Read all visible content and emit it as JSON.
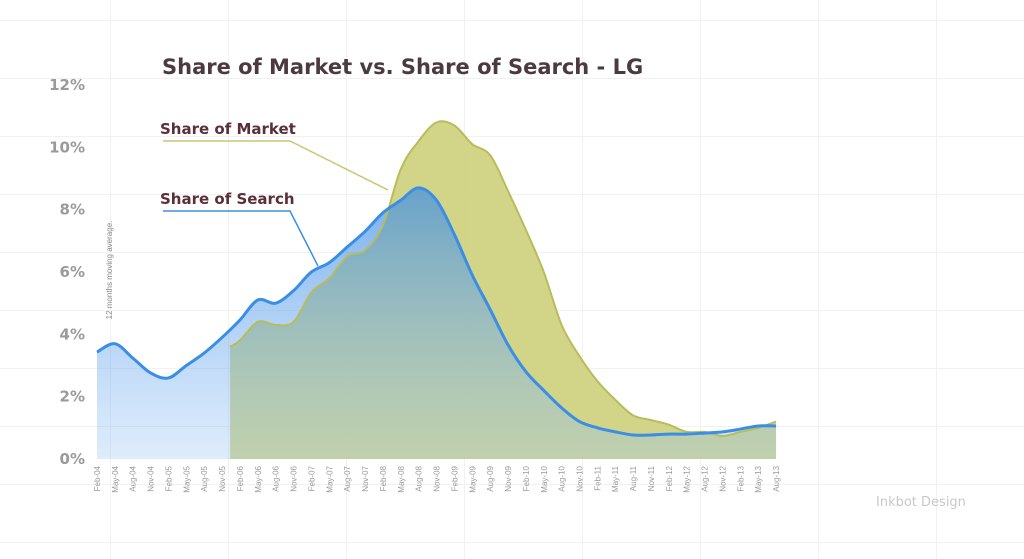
{
  "chart_data": {
    "type": "area",
    "title": "Share of Market vs. Share of Search - LG",
    "ylabel": "12 months moving average.",
    "ylim": [
      0,
      12
    ],
    "yticks": [
      "0%",
      "2%",
      "4%",
      "6%",
      "8%",
      "10%",
      "12%"
    ],
    "grid": true,
    "categories": [
      "Feb-04",
      "May-04",
      "Aug-04",
      "Nov-04",
      "Feb-05",
      "May-05",
      "Aug-05",
      "Nov-05",
      "Feb-06",
      "May-06",
      "Aug-06",
      "Nov-06",
      "Feb-07",
      "May-07",
      "Aug-07",
      "Nov-07",
      "Feb-08",
      "May-08",
      "Aug-08",
      "Nov-08",
      "Feb-09",
      "May-09",
      "Aug-09",
      "Nov-09",
      "Feb-10",
      "May-10",
      "Aug-10",
      "Nov-10",
      "Feb-11",
      "May-11",
      "Aug-11",
      "Nov-11",
      "Feb-12",
      "May-12",
      "Aug-12",
      "Nov-12",
      "Feb-13",
      "May-13",
      "Aug-13"
    ],
    "series": [
      {
        "name": "Share of Market",
        "color": "#c5c96e",
        "values": [
          null,
          null,
          null,
          null,
          null,
          null,
          null,
          3.6,
          3.8,
          4.4,
          4.3,
          4.4,
          5.35,
          5.8,
          6.5,
          6.7,
          7.5,
          9.3,
          10.2,
          10.8,
          10.7,
          10.1,
          9.75,
          8.6,
          7.35,
          6.0,
          4.3,
          3.3,
          2.5,
          1.9,
          1.4,
          1.25,
          1.1,
          0.87,
          0.87,
          0.74,
          0.87,
          1.0,
          1.2
        ]
      },
      {
        "name": "Share of Search",
        "color": "#3a8ee6",
        "values": [
          3.43,
          3.7,
          3.24,
          2.76,
          2.6,
          3.0,
          3.4,
          3.9,
          4.46,
          5.1,
          5.0,
          5.4,
          6.0,
          6.3,
          6.8,
          7.3,
          7.9,
          8.3,
          8.7,
          8.3,
          7.2,
          5.9,
          4.8,
          3.66,
          2.8,
          2.2,
          1.64,
          1.2,
          1.0,
          0.87,
          0.77,
          0.77,
          0.8,
          0.8,
          0.83,
          0.87,
          0.96,
          1.06,
          1.06
        ]
      }
    ]
  },
  "watermark": "Inkbot Design"
}
